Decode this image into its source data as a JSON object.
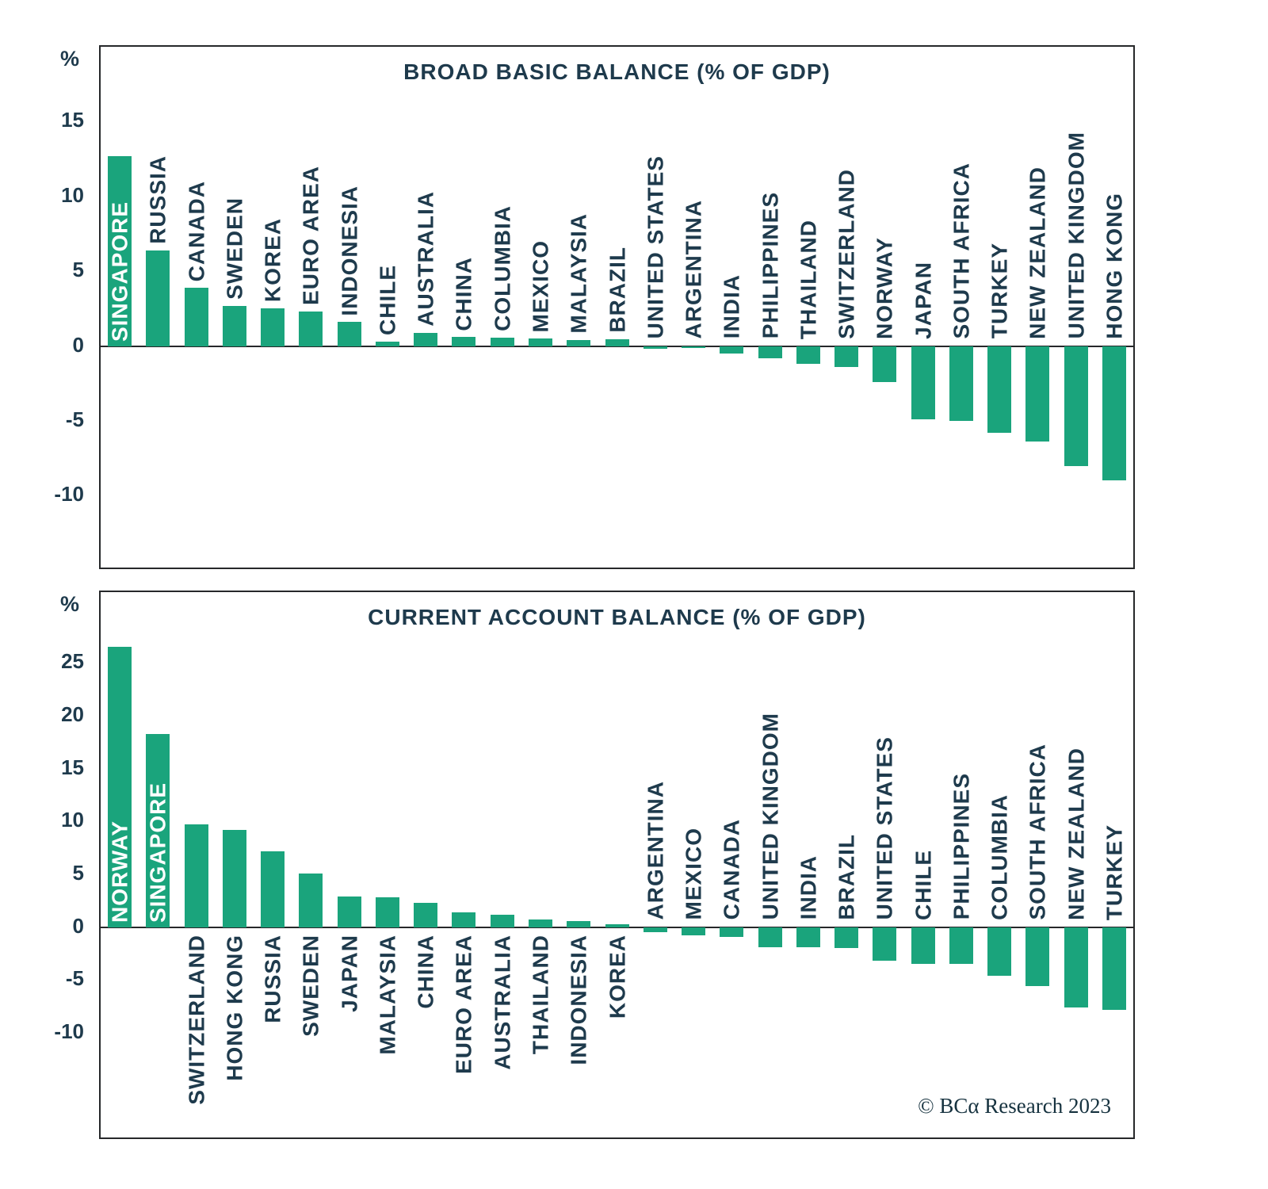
{
  "page": {
    "copyright": "© BCα Research 2023"
  },
  "colors": {
    "bar": "#1aa47c",
    "label": "#1e3a4c",
    "axis": "#26282a"
  },
  "chart_data": [
    {
      "type": "bar",
      "title": "BROAD BASIC BALANCE (% OF GDP)",
      "unit": "%",
      "xlabel": "",
      "ylabel": "% of GDP",
      "ylim": [
        -14.8,
        20
      ],
      "yticks": [
        15,
        10,
        5,
        0,
        -5,
        -10
      ],
      "grid": false,
      "legend": "none",
      "categories": [
        "SINGAPORE",
        "RUSSIA",
        "CANADA",
        "SWEDEN",
        "KOREA",
        "EURO AREA",
        "INDONESIA",
        "CHILE",
        "AUSTRALIA",
        "CHINA",
        "COLUMBIA",
        "MEXICO",
        "MALAYSIA",
        "BRAZIL",
        "UNITED STATES",
        "ARGENTINA",
        "INDIA",
        "PHILIPPINES",
        "THAILAND",
        "SWITZERLAND",
        "NORWAY",
        "JAPAN",
        "SOUTH AFRICA",
        "TURKEY",
        "NEW ZEALAND",
        "UNITED KINGDOM",
        "HONG KONG"
      ],
      "values": [
        12.7,
        6.4,
        3.9,
        2.7,
        2.5,
        2.3,
        1.6,
        0.3,
        0.9,
        0.6,
        0.55,
        0.5,
        0.4,
        0.45,
        -0.2,
        -0.1,
        -0.5,
        -0.8,
        -1.2,
        -1.4,
        -2.4,
        -4.9,
        -5.0,
        -5.8,
        -6.4,
        -8.0,
        -9.0
      ],
      "label_inside": [
        "SINGAPORE"
      ],
      "positive_label_position": "above-bar",
      "negative_label_position": "above-axis"
    },
    {
      "type": "bar",
      "title": "CURRENT ACCOUNT BALANCE (% OF GDP)",
      "unit": "%",
      "xlabel": "",
      "ylabel": "% of GDP",
      "ylim": [
        -19.9,
        31.7
      ],
      "yticks": [
        25,
        20,
        15,
        10,
        5,
        0,
        -5,
        -10
      ],
      "grid": false,
      "legend": "none",
      "categories": [
        "NORWAY",
        "SINGAPORE",
        "SWITZERLAND",
        "HONG KONG",
        "RUSSIA",
        "SWEDEN",
        "JAPAN",
        "MALAYSIA",
        "CHINA",
        "EURO AREA",
        "AUSTRALIA",
        "THAILAND",
        "INDONESIA",
        "KOREA",
        "ARGENTINA",
        "MEXICO",
        "CANADA",
        "UNITED KINGDOM",
        "INDIA",
        "BRAZIL",
        "UNITED STATES",
        "CHILE",
        "PHILIPPINES",
        "COLUMBIA",
        "SOUTH AFRICA",
        "NEW ZEALAND",
        "TURKEY"
      ],
      "values": [
        26.5,
        18.3,
        9.7,
        9.2,
        7.2,
        5.1,
        2.9,
        2.8,
        2.3,
        1.4,
        1.2,
        0.7,
        0.6,
        0.3,
        -0.5,
        -0.8,
        -0.9,
        -1.9,
        -1.9,
        -2.0,
        -3.2,
        -3.5,
        -3.5,
        -4.6,
        -5.6,
        -7.6,
        -7.8
      ],
      "label_inside": [
        "NORWAY",
        "SINGAPORE"
      ],
      "positive_label_position": "below-axis",
      "negative_label_position": "above-axis"
    }
  ]
}
